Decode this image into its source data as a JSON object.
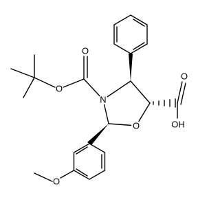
{
  "labels": [
    "O",
    "O",
    "N",
    "O",
    "O",
    "OH",
    "O"
  ]
}
